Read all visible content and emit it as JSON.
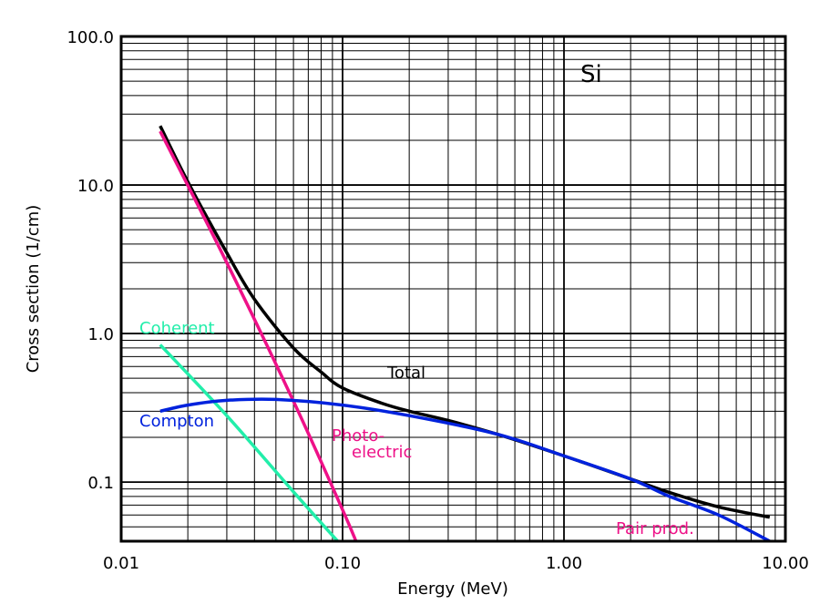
{
  "chart_data": {
    "type": "line",
    "title": "",
    "panel_label": "Si",
    "xlabel": "Energy (MeV)",
    "ylabel": "Cross section (1/cm)",
    "xscale": "log",
    "yscale": "log",
    "xlim": [
      0.01,
      10.0
    ],
    "ylim": [
      0.04,
      100.0
    ],
    "grid": true,
    "x_tick_labels": [
      {
        "value": 0.01,
        "label": "0.01"
      },
      {
        "value": 0.1,
        "label": "0.10"
      },
      {
        "value": 1.0,
        "label": "1.00"
      },
      {
        "value": 10.0,
        "label": "10.00"
      }
    ],
    "y_tick_labels": [
      {
        "value": 0.1,
        "label": "0.1"
      },
      {
        "value": 1.0,
        "label": "1.0"
      },
      {
        "value": 10.0,
        "label": "10.0"
      },
      {
        "value": 100.0,
        "label": "100.0"
      }
    ],
    "series": [
      {
        "name": "Total",
        "color": "#000000",
        "x": [
          0.015,
          0.02,
          0.03,
          0.04,
          0.06,
          0.08,
          0.1,
          0.15,
          0.2,
          0.3,
          0.5,
          1.0,
          2.0,
          3.0,
          5.0,
          8.5
        ],
        "y": [
          25.0,
          10.5,
          3.5,
          1.7,
          0.8,
          0.55,
          0.43,
          0.34,
          0.3,
          0.26,
          0.21,
          0.15,
          0.105,
          0.085,
          0.068,
          0.058
        ]
      },
      {
        "name": "Photo- electric",
        "color": "#ee1188",
        "x": [
          0.015,
          0.03,
          0.06,
          0.1,
          0.115
        ],
        "y": [
          23.0,
          3.0,
          0.35,
          0.065,
          0.04
        ]
      },
      {
        "name": "Coherent",
        "color": "#22eeaa",
        "x": [
          0.015,
          0.03,
          0.06,
          0.095
        ],
        "y": [
          0.84,
          0.28,
          0.086,
          0.04
        ]
      },
      {
        "name": "Compton",
        "color": "#0022dd",
        "x": [
          0.015,
          0.02,
          0.03,
          0.05,
          0.1,
          0.2,
          0.5,
          1.0,
          2.0,
          3.0,
          5.0,
          8.5
        ],
        "y": [
          0.3,
          0.33,
          0.355,
          0.36,
          0.33,
          0.28,
          0.21,
          0.15,
          0.105,
          0.08,
          0.06,
          0.04
        ]
      }
    ],
    "annotations": [
      {
        "text": "Total",
        "color": "#000000"
      },
      {
        "text": "Photo-",
        "color": "#ee1188"
      },
      {
        "text": "electric",
        "color": "#ee1188"
      },
      {
        "text": "Coherent",
        "color": "#22eeaa"
      },
      {
        "text": "Compton",
        "color": "#0022dd"
      },
      {
        "text": "Pair prod.",
        "color": "#ee1188"
      }
    ]
  }
}
